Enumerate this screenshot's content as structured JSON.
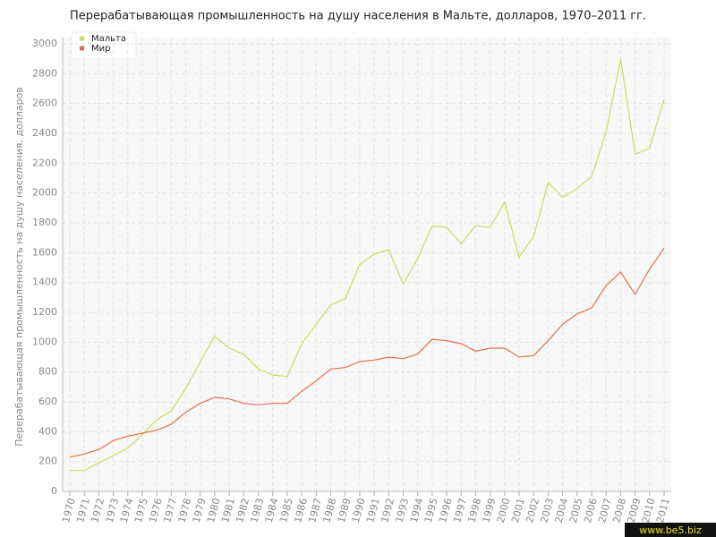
{
  "chart_data": {
    "type": "line",
    "title": "Перерабатывающая промышленность на душу населения в Мальте, долларов, 1970–2011 гг.",
    "y_label": "Перерабатывающая промышленность на душу населения, долларов",
    "categories": [
      "1970",
      "1971",
      "1972",
      "1973",
      "1974",
      "1975",
      "1976",
      "1977",
      "1978",
      "1979",
      "1980",
      "1981",
      "1982",
      "1983",
      "1984",
      "1985",
      "1986",
      "1987",
      "1988",
      "1989",
      "1990",
      "1991",
      "1992",
      "1993",
      "1994",
      "1995",
      "1996",
      "1997",
      "1998",
      "1999",
      "2000",
      "2001",
      "2002",
      "2003",
      "2004",
      "2005",
      "2006",
      "2007",
      "2008",
      "2009",
      "2010",
      "2011"
    ],
    "series": [
      {
        "name": "Мальта",
        "color": "#c5df55",
        "values": [
          140,
          140,
          190,
          240,
          290,
          380,
          480,
          540,
          690,
          870,
          1040,
          960,
          920,
          820,
          780,
          770,
          990,
          1120,
          1250,
          1290,
          1520,
          1590,
          1620,
          1390,
          1560,
          1780,
          1770,
          1660,
          1780,
          1770,
          1940,
          1570,
          1710,
          2070,
          1970,
          2030,
          2110,
          2410,
          2900,
          2260,
          2300,
          2630
        ]
      },
      {
        "name": "Мир",
        "color": "#e0704a",
        "values": [
          230,
          250,
          280,
          340,
          370,
          390,
          410,
          450,
          530,
          590,
          630,
          620,
          590,
          580,
          590,
          590,
          670,
          740,
          820,
          830,
          870,
          880,
          900,
          890,
          920,
          1020,
          1010,
          990,
          940,
          960,
          960,
          900,
          910,
          1010,
          1120,
          1190,
          1230,
          1380,
          1470,
          1320,
          1490,
          1630
        ]
      }
    ],
    "ylim": [
      0,
      3000
    ],
    "yticks": [
      0,
      200,
      400,
      600,
      800,
      1000,
      1200,
      1400,
      1600,
      1800,
      2000,
      2200,
      2400,
      2600,
      2800,
      3000
    ],
    "grid": true,
    "legend": "top-left"
  },
  "watermark": "www.be5.biz"
}
